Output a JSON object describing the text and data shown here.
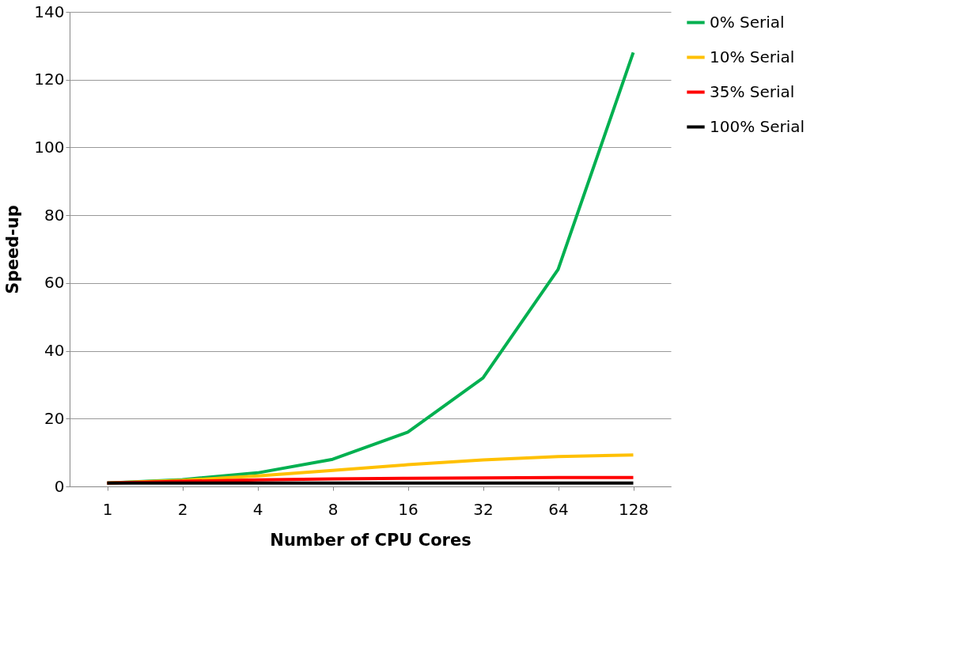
{
  "chart_data": {
    "type": "line",
    "xlabel": "Number of CPU Cores",
    "ylabel": "Speed-up",
    "categories": [
      "1",
      "2",
      "4",
      "8",
      "16",
      "32",
      "64",
      "128"
    ],
    "series": [
      {
        "name": "0% Serial",
        "color": "#00b050",
        "values": [
          1,
          2,
          4,
          8,
          16,
          32,
          64,
          128
        ]
      },
      {
        "name": "10% Serial",
        "color": "#ffc000",
        "values": [
          1,
          1.8,
          3.1,
          4.7,
          6.4,
          7.8,
          8.8,
          9.3
        ]
      },
      {
        "name": "35% Serial",
        "color": "#ff0000",
        "values": [
          1,
          1.5,
          1.9,
          2.2,
          2.4,
          2.5,
          2.6,
          2.6
        ]
      },
      {
        "name": "100% Serial",
        "color": "#000000",
        "values": [
          1,
          1,
          1,
          1,
          1,
          1,
          1,
          1
        ]
      }
    ],
    "ylim": [
      0,
      140
    ],
    "yticks": [
      0,
      20,
      40,
      60,
      80,
      100,
      120,
      140
    ],
    "grid": "y",
    "legend": "right",
    "marker": "none",
    "line_style": "solid"
  }
}
